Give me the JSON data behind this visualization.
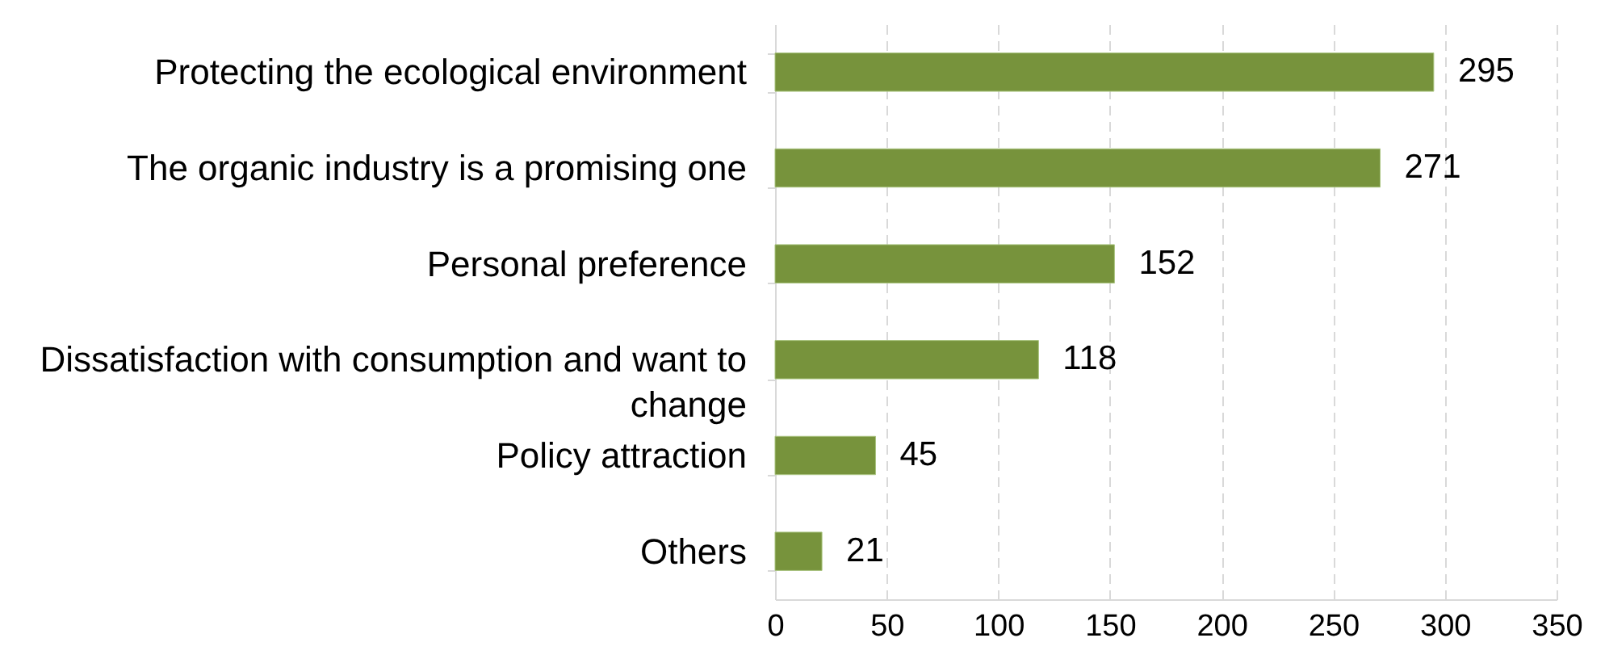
{
  "chart_data": {
    "type": "bar",
    "orientation": "horizontal",
    "categories": [
      "Protecting the ecological environment",
      "The organic industry is a promising one",
      "Personal preference",
      "Dissatisfaction with consumption and want to change",
      "Policy attraction",
      "Others"
    ],
    "values": [
      295,
      271,
      152,
      118,
      45,
      21
    ],
    "color": "#77933c",
    "xlim": [
      0,
      350
    ],
    "xticks": [
      0,
      50,
      100,
      150,
      200,
      250,
      300,
      350
    ],
    "grid": "x",
    "data_labels": true
  }
}
